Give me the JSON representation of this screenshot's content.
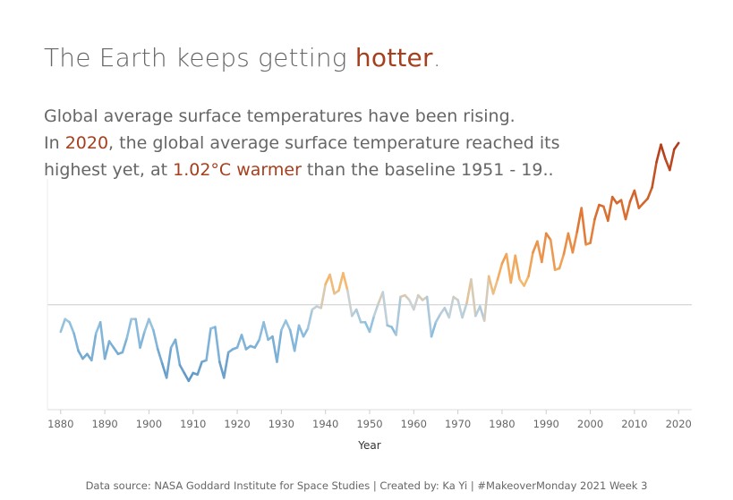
{
  "colors": {
    "accent": "#a53f1e",
    "cold": "#5b93c4",
    "neutral": "#c9d3d8",
    "warm": "#f5b76a",
    "hot": "#b8401c"
  },
  "header": {
    "title_pre": "The Earth keeps getting ",
    "title_hl": "hotter",
    "title_post": ".",
    "line1": "Global average surface temperatures have been rising.",
    "line2_pre": "In ",
    "line2_hl": "2020",
    "line2_post": ", the global average surface temperature reached its",
    "line3_pre": "highest yet, at ",
    "line3_hl": "1.02°C warmer",
    "line3_post": " than the baseline 1951 - 19.."
  },
  "footer": {
    "text": "Data source: NASA Goddard Institute for Space Studies  | Created by: Ka Yi | #MakeoverMonday 2021 Week 3"
  },
  "chart_data": {
    "type": "line",
    "xlabel": "Year",
    "ylabel": "",
    "x_ticks": [
      1880,
      1890,
      1900,
      1910,
      1920,
      1930,
      1940,
      1950,
      1960,
      1970,
      1980,
      1990,
      2000,
      2010,
      2020
    ],
    "xlim": [
      1877,
      2023
    ],
    "ylim": [
      -0.65,
      1.2
    ],
    "baseline": 0,
    "grid": false,
    "series": [
      {
        "x": [
          1880,
          1881,
          1882,
          1883,
          1884,
          1885,
          1886,
          1887,
          1888,
          1889,
          1890,
          1891,
          1892,
          1893,
          1894,
          1895,
          1896,
          1897,
          1898,
          1899,
          1900,
          1901,
          1902,
          1903,
          1904,
          1905,
          1906,
          1907,
          1908,
          1909,
          1910,
          1911,
          1912,
          1913,
          1914,
          1915,
          1916,
          1917,
          1918,
          1919,
          1920,
          1921,
          1922,
          1923,
          1924,
          1925,
          1926,
          1927,
          1928,
          1929,
          1930,
          1931,
          1932,
          1933,
          1934,
          1935,
          1936,
          1937,
          1938,
          1939,
          1940,
          1941,
          1942,
          1943,
          1944,
          1945,
          1946,
          1947,
          1948,
          1949,
          1950,
          1951,
          1952,
          1953,
          1954,
          1955,
          1956,
          1957,
          1958,
          1959,
          1960,
          1961,
          1962,
          1963,
          1964,
          1965,
          1966,
          1967,
          1968,
          1969,
          1970,
          1971,
          1972,
          1973,
          1974,
          1975,
          1976,
          1977,
          1978,
          1979,
          1980,
          1981,
          1982,
          1983,
          1984,
          1985,
          1986,
          1987,
          1988,
          1989,
          1990,
          1991,
          1992,
          1993,
          1994,
          1995,
          1996,
          1997,
          1998,
          1999,
          2000,
          2001,
          2002,
          2003,
          2004,
          2005,
          2006,
          2007,
          2008,
          2009,
          2010,
          2011,
          2012,
          2013,
          2014,
          2015,
          2016,
          2017,
          2018,
          2019,
          2020
        ],
        "y": [
          -0.17,
          -0.09,
          -0.11,
          -0.18,
          -0.29,
          -0.34,
          -0.31,
          -0.35,
          -0.18,
          -0.11,
          -0.34,
          -0.23,
          -0.27,
          -0.31,
          -0.3,
          -0.21,
          -0.09,
          -0.09,
          -0.27,
          -0.17,
          -0.09,
          -0.16,
          -0.28,
          -0.37,
          -0.46,
          -0.27,
          -0.22,
          -0.38,
          -0.43,
          -0.48,
          -0.43,
          -0.44,
          -0.36,
          -0.35,
          -0.15,
          -0.14,
          -0.36,
          -0.46,
          -0.3,
          -0.28,
          -0.27,
          -0.19,
          -0.28,
          -0.26,
          -0.27,
          -0.22,
          -0.11,
          -0.22,
          -0.2,
          -0.36,
          -0.16,
          -0.1,
          -0.16,
          -0.29,
          -0.13,
          -0.2,
          -0.15,
          -0.03,
          -0.01,
          -0.02,
          0.13,
          0.19,
          0.07,
          0.09,
          0.2,
          0.09,
          -0.07,
          -0.03,
          -0.11,
          -0.11,
          -0.17,
          -0.07,
          0.01,
          0.08,
          -0.13,
          -0.14,
          -0.19,
          0.05,
          0.06,
          0.03,
          -0.03,
          0.06,
          0.03,
          0.05,
          -0.2,
          -0.11,
          -0.06,
          -0.02,
          -0.08,
          0.05,
          0.03,
          -0.08,
          0.01,
          0.16,
          -0.07,
          -0.01,
          -0.1,
          0.18,
          0.07,
          0.16,
          0.26,
          0.32,
          0.14,
          0.31,
          0.16,
          0.12,
          0.18,
          0.33,
          0.4,
          0.27,
          0.45,
          0.41,
          0.22,
          0.23,
          0.32,
          0.45,
          0.33,
          0.46,
          0.61,
          0.38,
          0.39,
          0.54,
          0.63,
          0.62,
          0.53,
          0.68,
          0.64,
          0.66,
          0.54,
          0.65,
          0.72,
          0.61,
          0.64,
          0.67,
          0.74,
          0.9,
          1.01,
          0.92,
          0.85,
          0.98,
          1.02
        ]
      }
    ]
  }
}
